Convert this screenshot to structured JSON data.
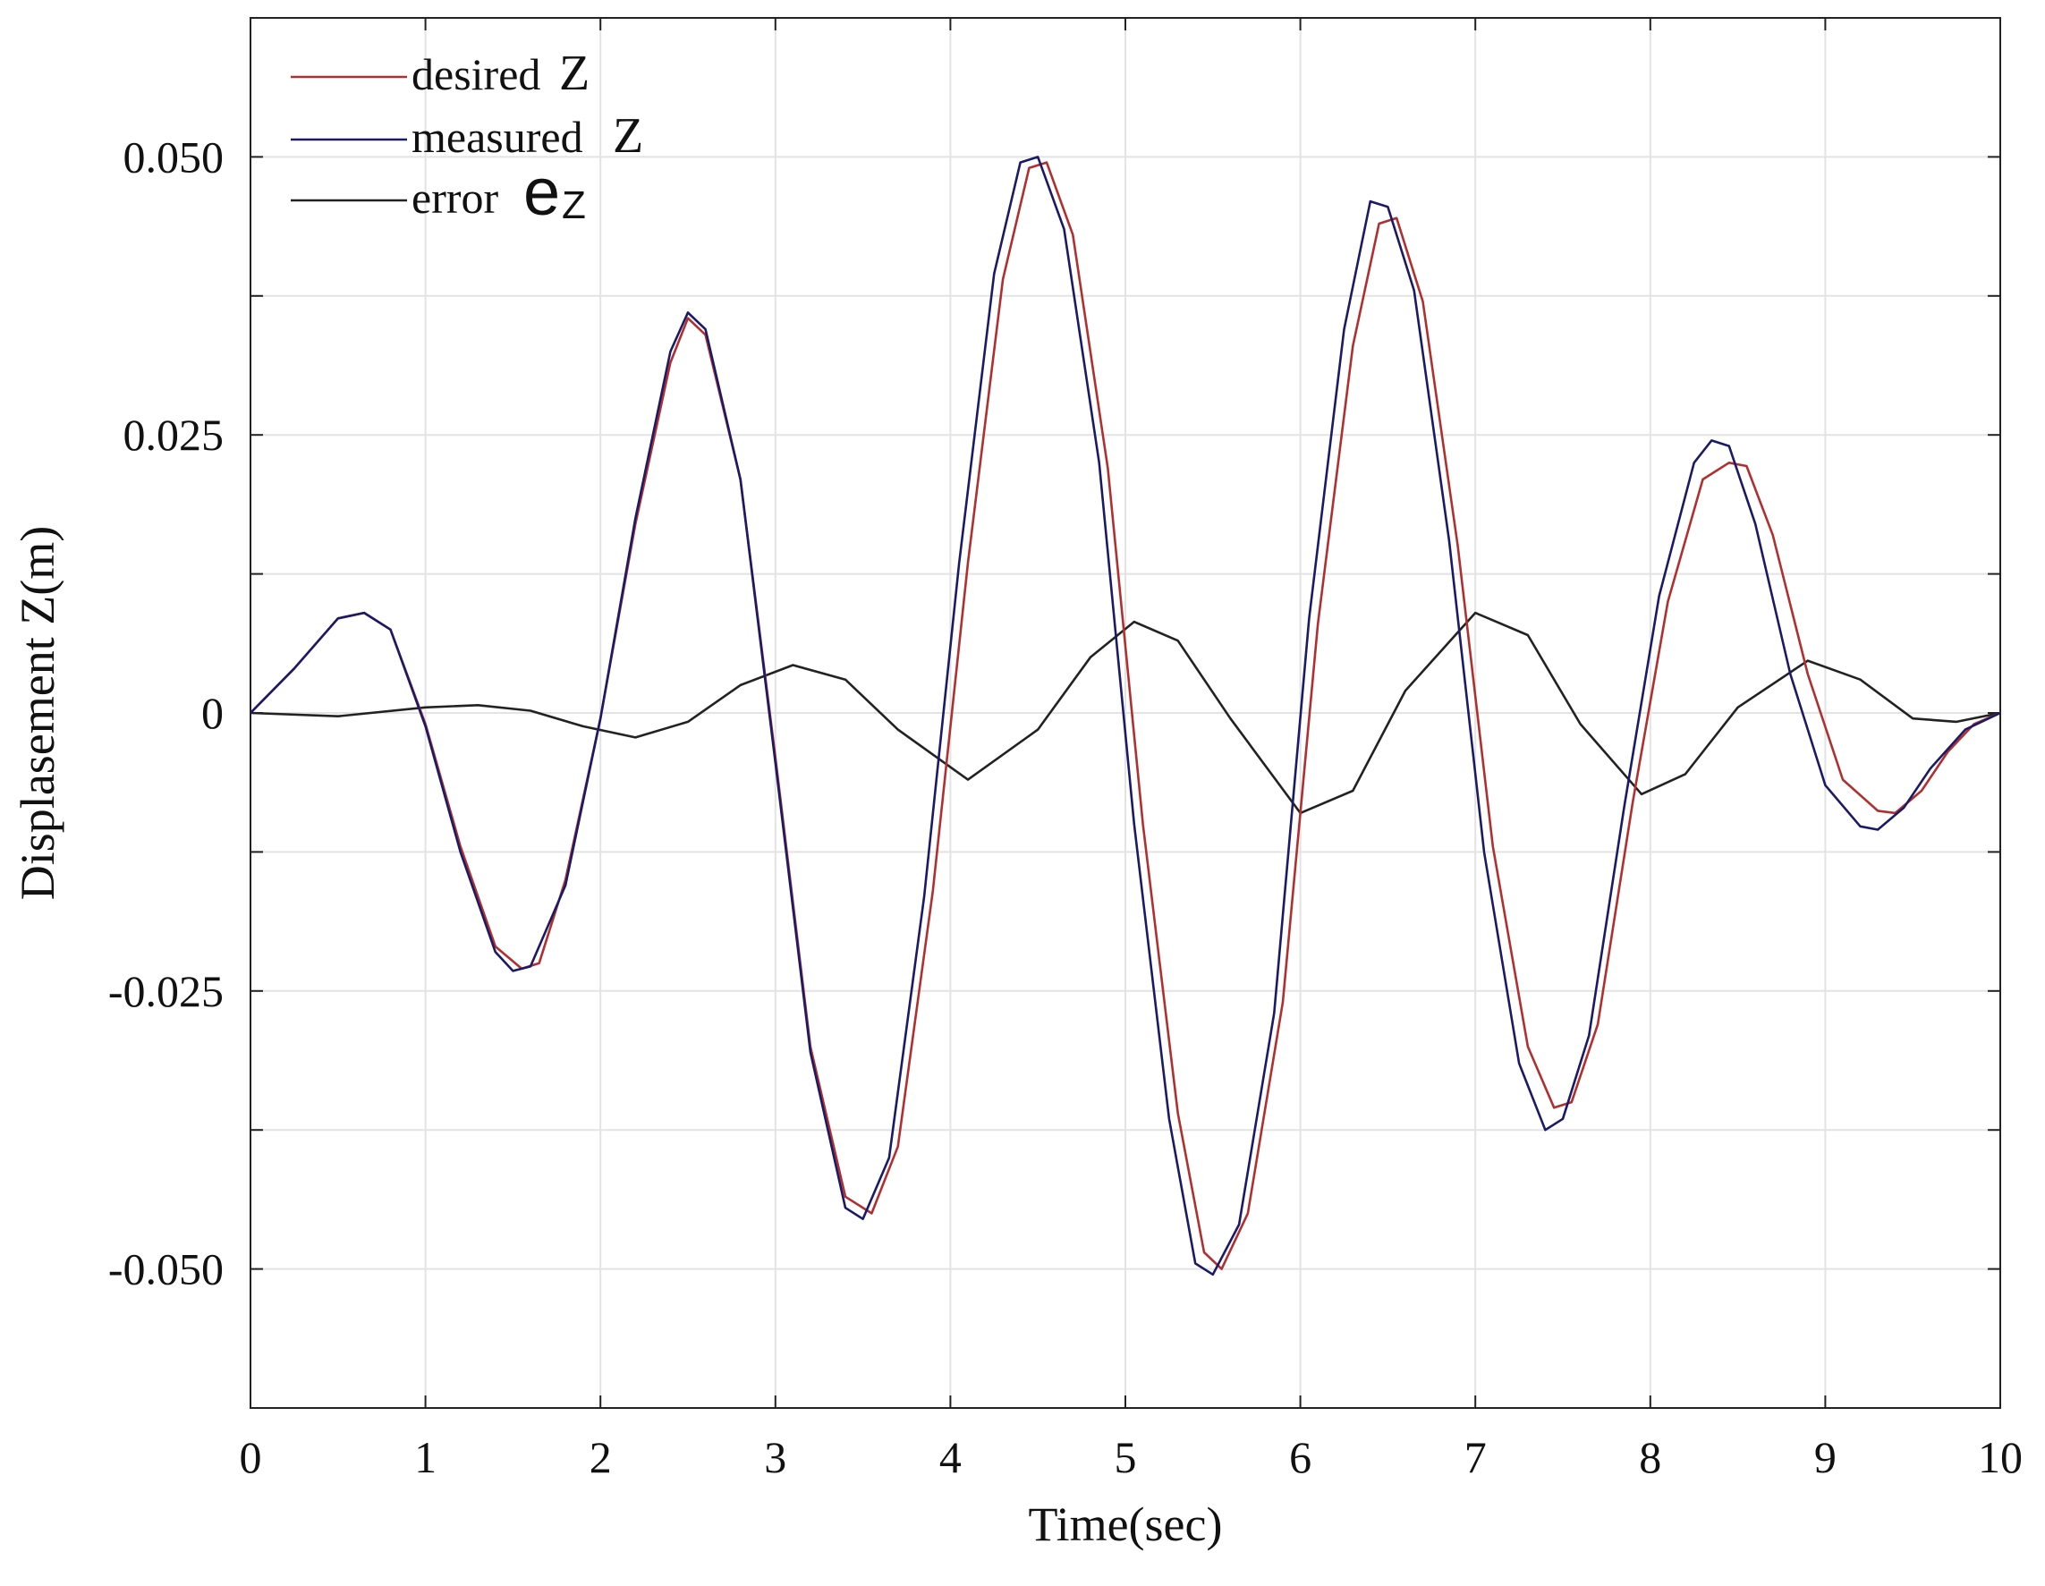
{
  "chart_data": {
    "type": "line",
    "xlabel": "Time(sec)",
    "ylabel": "Displasement Z(m)",
    "xlim": [
      0,
      10
    ],
    "ylim": [
      -0.0625,
      0.0625
    ],
    "xticks": [
      0,
      1,
      2,
      3,
      4,
      5,
      6,
      7,
      8,
      9,
      10
    ],
    "xtick_labels": [
      "0",
      "1",
      "2",
      "3",
      "4",
      "5",
      "6",
      "7",
      "8",
      "9",
      "10"
    ],
    "yticks": [
      -0.05,
      -0.025,
      0,
      0.025,
      0.05
    ],
    "ytick_labels": [
      "-0.050",
      "-0.025",
      "0",
      "0.025",
      "0.050"
    ],
    "grid": true,
    "legend_position": "top-left",
    "legend": [
      {
        "label": "desired",
        "symbol": "Z",
        "sub": "",
        "color": "#b03030"
      },
      {
        "label": "measured",
        "symbol": "Z",
        "sub": "",
        "color": "#1a1a66"
      },
      {
        "label": "error",
        "symbol": "e",
        "sub": "Z",
        "color": "#222222"
      }
    ],
    "series": [
      {
        "name": "desired Z",
        "color": "#b03030",
        "x": [
          0,
          0.25,
          0.5,
          0.65,
          0.8,
          1.0,
          1.2,
          1.4,
          1.55,
          1.65,
          1.8,
          2.0,
          2.2,
          2.4,
          2.5,
          2.6,
          2.8,
          3.0,
          3.2,
          3.4,
          3.55,
          3.7,
          3.9,
          4.1,
          4.3,
          4.45,
          4.55,
          4.7,
          4.9,
          5.1,
          5.3,
          5.45,
          5.55,
          5.7,
          5.9,
          6.1,
          6.3,
          6.45,
          6.55,
          6.7,
          6.9,
          7.1,
          7.3,
          7.45,
          7.55,
          7.7,
          7.9,
          8.1,
          8.3,
          8.45,
          8.55,
          8.7,
          8.9,
          9.1,
          9.3,
          9.4,
          9.55,
          9.7,
          9.85,
          10.0
        ],
        "y": [
          0,
          0.004,
          0.0085,
          0.009,
          0.0075,
          -0.001,
          -0.012,
          -0.021,
          -0.023,
          -0.0225,
          -0.015,
          -0.0005,
          0.017,
          0.0315,
          0.0355,
          0.034,
          0.021,
          -0.004,
          -0.03,
          -0.0435,
          -0.045,
          -0.039,
          -0.016,
          0.0135,
          0.039,
          0.049,
          0.0495,
          0.043,
          0.022,
          -0.01,
          -0.036,
          -0.0485,
          -0.05,
          -0.045,
          -0.026,
          0.008,
          0.033,
          0.044,
          0.0445,
          0.037,
          0.015,
          -0.012,
          -0.03,
          -0.0355,
          -0.035,
          -0.028,
          -0.008,
          0.01,
          0.021,
          0.0225,
          0.0222,
          0.016,
          0.0035,
          -0.006,
          -0.0088,
          -0.009,
          -0.007,
          -0.0035,
          -0.001,
          0
        ]
      },
      {
        "name": "measured Z",
        "color": "#1a1a66",
        "x": [
          0,
          0.25,
          0.5,
          0.65,
          0.8,
          1.0,
          1.2,
          1.4,
          1.5,
          1.6,
          1.8,
          2.0,
          2.2,
          2.4,
          2.5,
          2.6,
          2.8,
          3.0,
          3.2,
          3.4,
          3.5,
          3.65,
          3.85,
          4.05,
          4.25,
          4.4,
          4.5,
          4.65,
          4.85,
          5.05,
          5.25,
          5.4,
          5.5,
          5.65,
          5.85,
          6.05,
          6.25,
          6.4,
          6.5,
          6.65,
          6.85,
          7.05,
          7.25,
          7.4,
          7.5,
          7.65,
          7.85,
          8.05,
          8.25,
          8.35,
          8.45,
          8.6,
          8.8,
          9.0,
          9.2,
          9.3,
          9.45,
          9.6,
          9.8,
          10.0
        ],
        "y": [
          0,
          0.004,
          0.0085,
          0.009,
          0.0075,
          -0.0012,
          -0.0125,
          -0.0215,
          -0.0232,
          -0.0228,
          -0.0155,
          -0.0005,
          0.0175,
          0.0325,
          0.036,
          0.0345,
          0.021,
          -0.0045,
          -0.0305,
          -0.0445,
          -0.0455,
          -0.04,
          -0.0165,
          0.0135,
          0.0395,
          0.0495,
          0.05,
          0.0435,
          0.0225,
          -0.01,
          -0.0365,
          -0.0495,
          -0.0505,
          -0.046,
          -0.027,
          0.0085,
          0.0345,
          0.046,
          0.0455,
          0.038,
          0.0155,
          -0.0125,
          -0.0315,
          -0.0375,
          -0.0365,
          -0.029,
          -0.0085,
          0.0105,
          0.0225,
          0.0245,
          0.024,
          0.017,
          0.0035,
          -0.0065,
          -0.0102,
          -0.0105,
          -0.0085,
          -0.005,
          -0.0015,
          0
        ]
      },
      {
        "name": "error e_Z",
        "color": "#222222",
        "x": [
          0,
          0.5,
          1.0,
          1.3,
          1.6,
          1.9,
          2.2,
          2.5,
          2.8,
          3.1,
          3.4,
          3.7,
          4.1,
          4.5,
          4.8,
          5.05,
          5.3,
          5.6,
          6.0,
          6.3,
          6.6,
          7.0,
          7.3,
          7.6,
          7.95,
          8.2,
          8.5,
          8.9,
          9.2,
          9.5,
          9.75,
          10.0
        ],
        "y": [
          0,
          -0.0003,
          0.0005,
          0.0007,
          0.0002,
          -0.0012,
          -0.0022,
          -0.0008,
          0.0025,
          0.0043,
          0.003,
          -0.0015,
          -0.006,
          -0.0015,
          0.005,
          0.0082,
          0.0065,
          -0.0005,
          -0.009,
          -0.007,
          0.002,
          0.009,
          0.007,
          -0.001,
          -0.0073,
          -0.0055,
          0.0005,
          0.0047,
          0.003,
          -0.0005,
          -0.0008,
          0
        ]
      }
    ]
  }
}
